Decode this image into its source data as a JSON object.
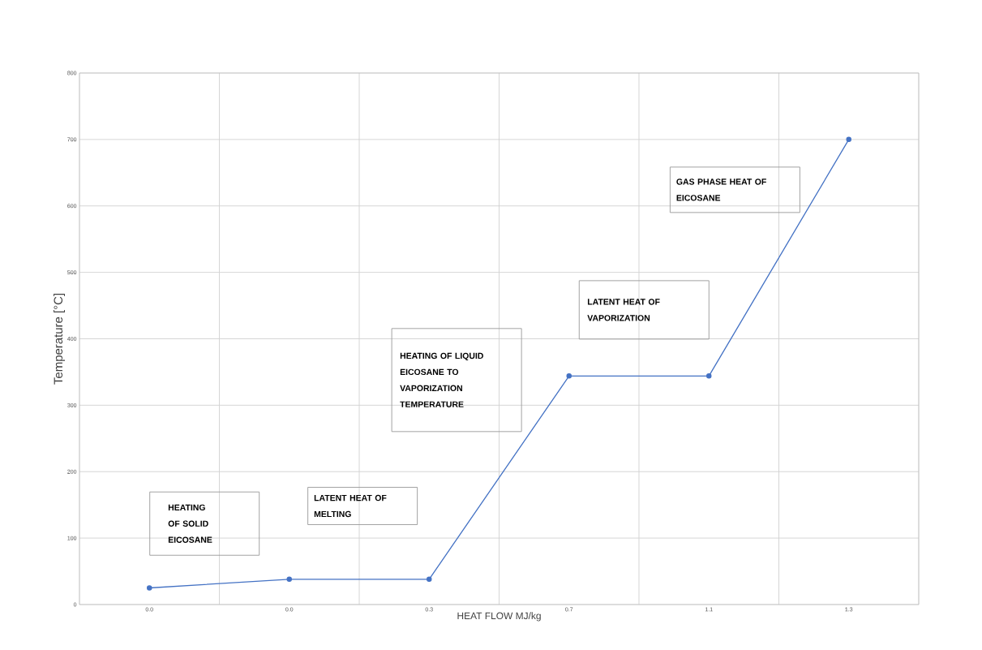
{
  "chart_data": {
    "type": "line",
    "xlabel": "HEAT FLOW MJ/kg",
    "ylabel": "Temperature [°C]",
    "categories": [
      "0.0",
      "0.0",
      "0.3",
      "0.7",
      "1.1",
      "1.3"
    ],
    "series": [
      {
        "color": "#4472c4",
        "values": [
          25,
          38,
          38,
          344,
          344,
          700
        ]
      }
    ],
    "ylim": [
      0,
      800
    ],
    "yticks": [
      0,
      100,
      200,
      300,
      400,
      500,
      600,
      700,
      800
    ],
    "grid": true,
    "marker": "circle",
    "line_style": "solid",
    "annotations": [
      "HEATING OF SOLID EICOSANE",
      "LATENT HEAT OF MELTING",
      "HEATING OF LIQUID EICOSANE TO VAPORIZATION TEMPERATURE",
      "LATENT HEAT OF VAPORIZATION",
      "GAS PHASE HEAT OF EICOSANE"
    ]
  }
}
